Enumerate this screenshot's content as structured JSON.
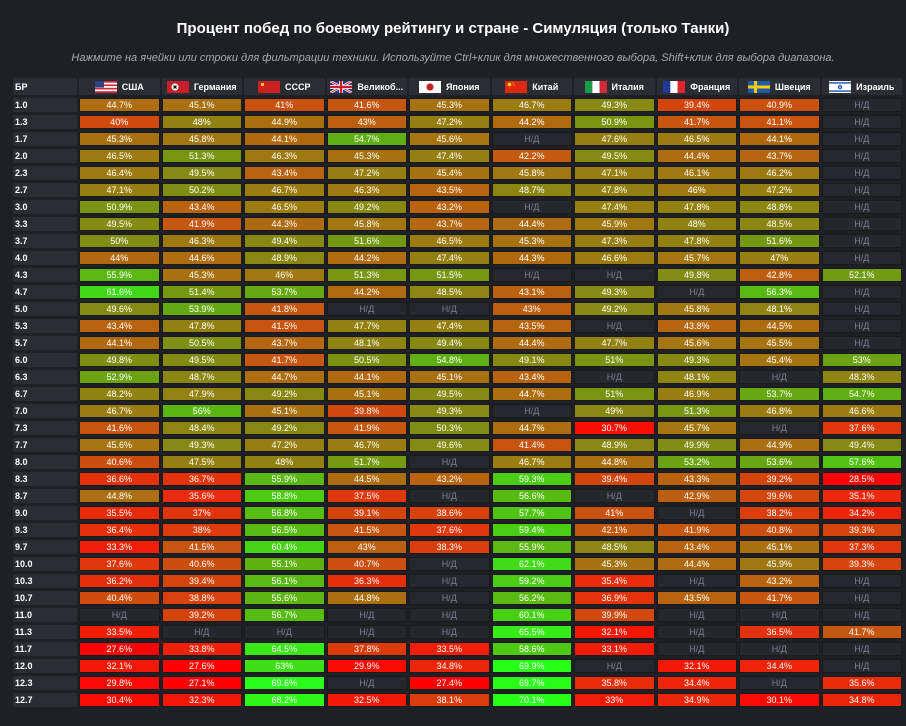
{
  "title": "Процент побед по боевому рейтингу и стране - Симуляция (только Танки)",
  "subtitle": "Нажмите на ячейки или строки для фильтрации техники. Используйте Ctrl+клик для множественного выбора, Shift+клик для выбора диапазона.",
  "table": {
    "br_header": "БР",
    "na_label": "Н/Д",
    "columns": [
      {
        "id": "usa",
        "label": "США",
        "flag": "usa-flag-icon"
      },
      {
        "id": "germany",
        "label": "Германия",
        "flag": "germany-flag-icon"
      },
      {
        "id": "ussr",
        "label": "СССР",
        "flag": "ussr-flag-icon"
      },
      {
        "id": "uk",
        "label": "Великоб...",
        "flag": "uk-flag-icon"
      },
      {
        "id": "japan",
        "label": "Япония",
        "flag": "japan-flag-icon"
      },
      {
        "id": "china",
        "label": "Китай",
        "flag": "china-flag-icon"
      },
      {
        "id": "italy",
        "label": "Италия",
        "flag": "italy-flag-icon"
      },
      {
        "id": "france",
        "label": "Франция",
        "flag": "france-flag-icon"
      },
      {
        "id": "sweden",
        "label": "Швеция",
        "flag": "sweden-flag-icon"
      },
      {
        "id": "israel",
        "label": "Израиль",
        "flag": "israel-flag-icon"
      }
    ],
    "rows": [
      {
        "br": "1.0",
        "values": [
          "44.7%",
          "45.1%",
          "41%",
          "41.6%",
          "45.3%",
          "46.7%",
          "49.3%",
          "39.4%",
          "40.9%",
          "Н/Д"
        ]
      },
      {
        "br": "1.3",
        "values": [
          "40%",
          "48%",
          "44.9%",
          "43%",
          "47.2%",
          "44.2%",
          "50.9%",
          "41.7%",
          "41.1%",
          "Н/Д"
        ]
      },
      {
        "br": "1.7",
        "values": [
          "45.3%",
          "45.8%",
          "44.1%",
          "54.7%",
          "45.6%",
          "Н/Д",
          "47.6%",
          "46.5%",
          "44.1%",
          "Н/Д"
        ]
      },
      {
        "br": "2.0",
        "values": [
          "46.5%",
          "51.3%",
          "46.3%",
          "45.3%",
          "47.4%",
          "42.2%",
          "49.5%",
          "44.4%",
          "43.7%",
          "Н/Д"
        ]
      },
      {
        "br": "2.3",
        "values": [
          "46.4%",
          "49.5%",
          "43.4%",
          "47.2%",
          "45.4%",
          "45.8%",
          "47.1%",
          "46.1%",
          "46.2%",
          "Н/Д"
        ]
      },
      {
        "br": "2.7",
        "values": [
          "47.1%",
          "50.2%",
          "46.7%",
          "46.3%",
          "43.5%",
          "48.7%",
          "47.8%",
          "46%",
          "47.2%",
          "Н/Д"
        ]
      },
      {
        "br": "3.0",
        "values": [
          "50.9%",
          "43.4%",
          "46.5%",
          "49.2%",
          "43.2%",
          "Н/Д",
          "47.4%",
          "47.8%",
          "48.8%",
          "Н/Д"
        ]
      },
      {
        "br": "3.3",
        "values": [
          "49.5%",
          "41.9%",
          "44.3%",
          "45.8%",
          "43.7%",
          "44.4%",
          "45.9%",
          "48%",
          "48.5%",
          "Н/Д"
        ]
      },
      {
        "br": "3.7",
        "values": [
          "50%",
          "46.3%",
          "49.4%",
          "51.6%",
          "46.5%",
          "45.3%",
          "47.3%",
          "47.8%",
          "51.6%",
          "Н/Д"
        ]
      },
      {
        "br": "4.0",
        "values": [
          "44%",
          "44.6%",
          "48.9%",
          "44.2%",
          "47.4%",
          "44.3%",
          "46.6%",
          "45.7%",
          "47%",
          "Н/Д"
        ]
      },
      {
        "br": "4.3",
        "values": [
          "55.9%",
          "45.3%",
          "46%",
          "51.3%",
          "51.5%",
          "Н/Д",
          "Н/Д",
          "49.8%",
          "42.8%",
          "52.1%"
        ]
      },
      {
        "br": "4.7",
        "values": [
          "61.6%",
          "51.4%",
          "53.7%",
          "44.2%",
          "48.5%",
          "43.1%",
          "49.3%",
          "Н/Д",
          "56.3%",
          "Н/Д"
        ]
      },
      {
        "br": "5.0",
        "values": [
          "49.6%",
          "53.9%",
          "41.8%",
          "Н/Д",
          "Н/Д",
          "43%",
          "49.2%",
          "45.8%",
          "48.1%",
          "Н/Д"
        ]
      },
      {
        "br": "5.3",
        "values": [
          "43.4%",
          "47.8%",
          "41.5%",
          "47.7%",
          "47.4%",
          "43.5%",
          "Н/Д",
          "43.8%",
          "44.5%",
          "Н/Д"
        ]
      },
      {
        "br": "5.7",
        "values": [
          "44.1%",
          "50.5%",
          "43.7%",
          "48.1%",
          "49.4%",
          "44.4%",
          "47.7%",
          "45.6%",
          "45.5%",
          "Н/Д"
        ]
      },
      {
        "br": "6.0",
        "values": [
          "49.8%",
          "49.5%",
          "41.7%",
          "50.5%",
          "54.8%",
          "49.1%",
          "51%",
          "49.3%",
          "45.4%",
          "53%"
        ]
      },
      {
        "br": "6.3",
        "values": [
          "52.9%",
          "48.7%",
          "44.7%",
          "44.1%",
          "45.1%",
          "43.4%",
          "Н/Д",
          "48.1%",
          "Н/Д",
          "48.3%"
        ]
      },
      {
        "br": "6.7",
        "values": [
          "48.2%",
          "47.9%",
          "49.2%",
          "45.1%",
          "49.5%",
          "44.7%",
          "51%",
          "46.9%",
          "53.7%",
          "54.7%"
        ]
      },
      {
        "br": "7.0",
        "values": [
          "46.7%",
          "56%",
          "45.1%",
          "39.8%",
          "49.3%",
          "Н/Д",
          "49%",
          "51.3%",
          "46.8%",
          "46.6%"
        ]
      },
      {
        "br": "7.3",
        "values": [
          "41.6%",
          "48.4%",
          "49.2%",
          "41.9%",
          "50.3%",
          "44.7%",
          "30.7%",
          "45.7%",
          "Н/Д",
          "37.6%"
        ]
      },
      {
        "br": "7.7",
        "values": [
          "45.6%",
          "49.3%",
          "47.2%",
          "46.7%",
          "49.6%",
          "41.4%",
          "48.9%",
          "49.9%",
          "44.9%",
          "49.4%"
        ]
      },
      {
        "br": "8.0",
        "values": [
          "40.6%",
          "47.5%",
          "48%",
          "51.7%",
          "Н/Д",
          "46.7%",
          "44.8%",
          "53.2%",
          "53.6%",
          "57.6%"
        ]
      },
      {
        "br": "8.3",
        "values": [
          "36.6%",
          "36.7%",
          "55.9%",
          "44.5%",
          "43.2%",
          "59.3%",
          "39.4%",
          "43.3%",
          "39.2%",
          "28.5%"
        ]
      },
      {
        "br": "8.7",
        "values": [
          "44.8%",
          "35.6%",
          "58.8%",
          "37.5%",
          "Н/Д",
          "56.6%",
          "Н/Д",
          "42.9%",
          "39.6%",
          "35.1%"
        ]
      },
      {
        "br": "9.0",
        "values": [
          "35.5%",
          "37%",
          "56.8%",
          "39.1%",
          "38.6%",
          "57.7%",
          "41%",
          "Н/Д",
          "38.2%",
          "34.2%"
        ]
      },
      {
        "br": "9.3",
        "values": [
          "36.4%",
          "38%",
          "56.5%",
          "41.5%",
          "37.6%",
          "59.4%",
          "42.1%",
          "41.9%",
          "40.8%",
          "39.3%"
        ]
      },
      {
        "br": "9.7",
        "values": [
          "33.3%",
          "41.5%",
          "60.4%",
          "43%",
          "38.3%",
          "55.9%",
          "48.5%",
          "43.4%",
          "45.1%",
          "37.3%"
        ]
      },
      {
        "br": "10.0",
        "values": [
          "37.6%",
          "40.6%",
          "55.1%",
          "40.7%",
          "Н/Д",
          "62.1%",
          "45.3%",
          "44.4%",
          "45.9%",
          "39.3%"
        ]
      },
      {
        "br": "10.3",
        "values": [
          "36.2%",
          "39.4%",
          "56.1%",
          "36.3%",
          "Н/Д",
          "59.2%",
          "35.4%",
          "Н/Д",
          "43.2%",
          "Н/Д"
        ]
      },
      {
        "br": "10.7",
        "values": [
          "40.4%",
          "38.8%",
          "55.6%",
          "44.8%",
          "Н/Д",
          "56.2%",
          "36.9%",
          "43.5%",
          "41.7%",
          "Н/Д"
        ]
      },
      {
        "br": "11.0",
        "values": [
          "Н/Д",
          "39.2%",
          "56.7%",
          "Н/Д",
          "Н/Д",
          "60.1%",
          "39.9%",
          "Н/Д",
          "Н/Д",
          "Н/Д"
        ]
      },
      {
        "br": "11.3",
        "values": [
          "33.5%",
          "Н/Д",
          "Н/Д",
          "Н/Д",
          "Н/Д",
          "65.5%",
          "32.1%",
          "Н/Д",
          "36.5%",
          "41.7%"
        ]
      },
      {
        "br": "11.7",
        "values": [
          "27.6%",
          "33.8%",
          "64.5%",
          "37.8%",
          "33.5%",
          "58.6%",
          "33.1%",
          "Н/Д",
          "Н/Д",
          "Н/Д"
        ]
      },
      {
        "br": "12.0",
        "values": [
          "32.1%",
          "27.6%",
          "63%",
          "29.9%",
          "34.8%",
          "69.9%",
          "Н/Д",
          "32.1%",
          "34.4%",
          "Н/Д"
        ]
      },
      {
        "br": "12.3",
        "values": [
          "29.8%",
          "27.1%",
          "69.6%",
          "Н/Д",
          "27.4%",
          "69.7%",
          "35.8%",
          "34.4%",
          "Н/Д",
          "35.6%"
        ]
      },
      {
        "br": "12.7",
        "values": [
          "30.4%",
          "32.3%",
          "68.2%",
          "32.5%",
          "38.1%",
          "70.1%",
          "33%",
          "34.9%",
          "30.1%",
          "34.8%"
        ]
      }
    ]
  }
}
